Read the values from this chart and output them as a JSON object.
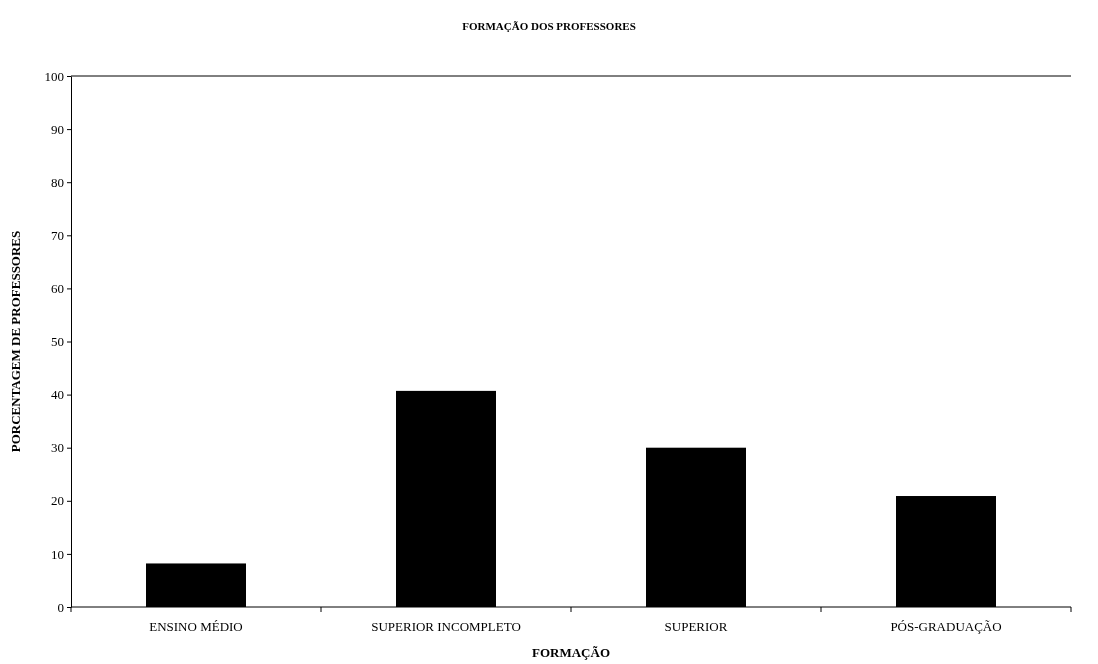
{
  "chart_data": {
    "type": "bar",
    "title": "FORMAÇÃO DOS PROFESSORES",
    "xlabel": "FORMAÇÃO",
    "ylabel": "PORCENTAGEM DE PROFESSORES",
    "categories": [
      "ENSINO MÉDIO",
      "SUPERIOR INCOMPLETO",
      "SUPERIOR",
      "PÓS-GRADUAÇÃO"
    ],
    "values": [
      8.2,
      40.7,
      30.0,
      20.9
    ],
    "color": "#000000",
    "ylim": [
      0,
      100
    ],
    "yticks": [
      0,
      10,
      20,
      30,
      40,
      50,
      60,
      70,
      80,
      90,
      100
    ]
  }
}
